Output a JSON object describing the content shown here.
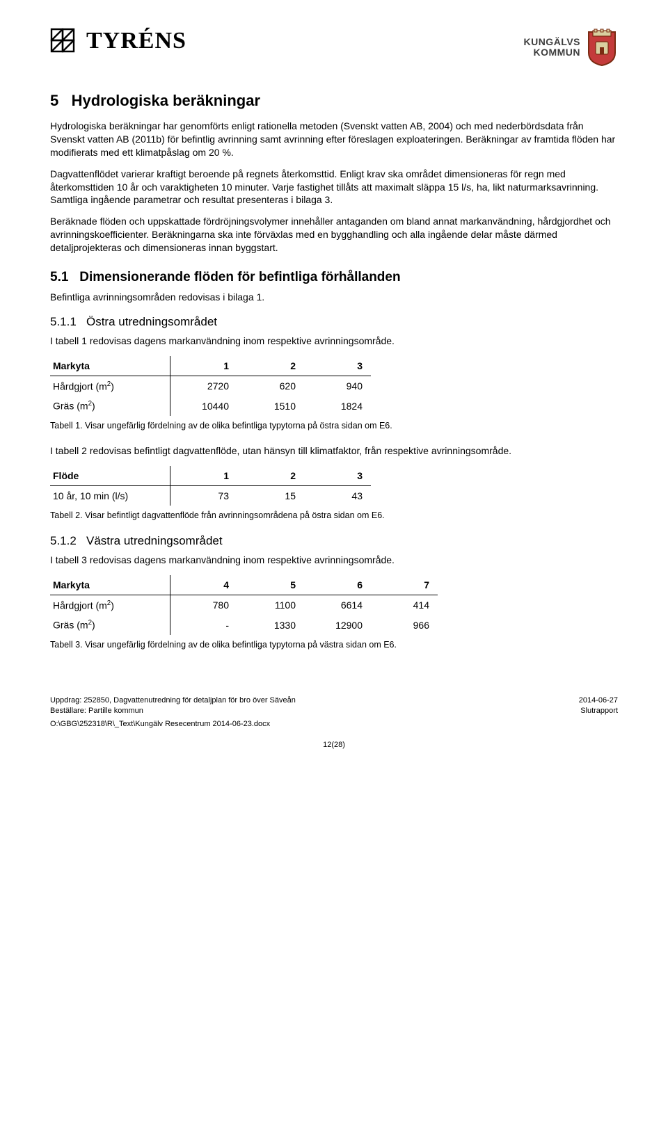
{
  "brand": {
    "tyrens": "TYRÉNS"
  },
  "kommun": {
    "line1": "KUNGÄLVS",
    "line2": "KOMMUN"
  },
  "h1": {
    "num": "5",
    "title": "Hydrologiska beräkningar"
  },
  "p1": "Hydrologiska beräkningar har genomförts enligt rationella metoden (Svenskt vatten AB, 2004) och med nederbördsdata från Svenskt vatten AB (2011b) för befintlig avrinning samt avrinning efter föreslagen exploateringen. Beräkningar av framtida flöden har modifierats med ett klimatpåslag om 20 %.",
  "p2": "Dagvattenflödet varierar kraftigt beroende på regnets återkomsttid. Enligt krav ska området dimensioneras för regn med återkomsttiden 10 år och varaktigheten 10 minuter. Varje fastighet tillåts att maximalt släppa 15 l/s, ha, likt naturmarksavrinning. Samtliga ingående parametrar och resultat presenteras i bilaga 3.",
  "p3": "Beräknade flöden och uppskattade fördröjningsvolymer innehåller antaganden om bland annat markanvändning, hårdgjordhet och avrinningskoefficienter. Beräkningarna ska inte förväxlas med en bygghandling och alla ingående delar måste därmed detaljprojekteras och dimensioneras innan byggstart.",
  "h2_1": {
    "num": "5.1",
    "title": "Dimensionerande flöden för befintliga förhållanden"
  },
  "p4": "Befintliga avrinningsområden redovisas i bilaga 1.",
  "h3_1": {
    "num": "5.1.1",
    "title": "Östra utredningsområdet"
  },
  "p5": "I tabell 1 redovisas dagens markanvändning inom respektive avrinningsområde.",
  "table1": {
    "head": [
      "Markyta",
      "1",
      "2",
      "3"
    ],
    "rows": [
      {
        "label_html": "Hårdgjort (m<sup>2</sup>)",
        "v": [
          "2720",
          "620",
          "940"
        ]
      },
      {
        "label_html": "Gräs (m<sup>2</sup>)",
        "v": [
          "10440",
          "1510",
          "1824"
        ]
      }
    ]
  },
  "cap1": "Tabell 1. Visar ungefärlig fördelning av de olika befintliga typytorna på östra sidan om E6.",
  "p6": "I tabell 2 redovisas befintligt dagvattenflöde, utan hänsyn till klimatfaktor, från respektive avrinningsområde.",
  "table2": {
    "head": [
      "Flöde",
      "1",
      "2",
      "3"
    ],
    "rows": [
      {
        "label_html": "10 år, 10 min (l/s)",
        "v": [
          "73",
          "15",
          "43"
        ]
      }
    ]
  },
  "cap2": "Tabell 2. Visar befintligt dagvattenflöde från avrinningsområdena på östra sidan om E6.",
  "h3_2": {
    "num": "5.1.2",
    "title": "Västra utredningsområdet"
  },
  "p7": "I tabell 3 redovisas dagens markanvändning inom respektive avrinningsområde.",
  "table3": {
    "head": [
      "Markyta",
      "4",
      "5",
      "6",
      "7"
    ],
    "rows": [
      {
        "label_html": "Hårdgjort (m<sup>2</sup>)",
        "v": [
          "780",
          "1100",
          "6614",
          "414"
        ]
      },
      {
        "label_html": "Gräs (m<sup>2</sup>)",
        "v": [
          "-",
          "1330",
          "12900",
          "966"
        ]
      }
    ]
  },
  "cap3": "Tabell 3. Visar ungefärlig fördelning av de olika befintliga typytorna på västra sidan om E6.",
  "footer": {
    "left1": "Uppdrag: 252850, Dagvattenutredning för detaljplan för bro över Säveån",
    "left2": "Beställare: Partille kommun",
    "right1": "2014-06-27",
    "right2": "Slutrapport",
    "path": "O:\\GBG\\252318\\R\\_Text\\Kungälv Resecentrum 2014-06-23.docx",
    "pagenum": "12(28)"
  }
}
